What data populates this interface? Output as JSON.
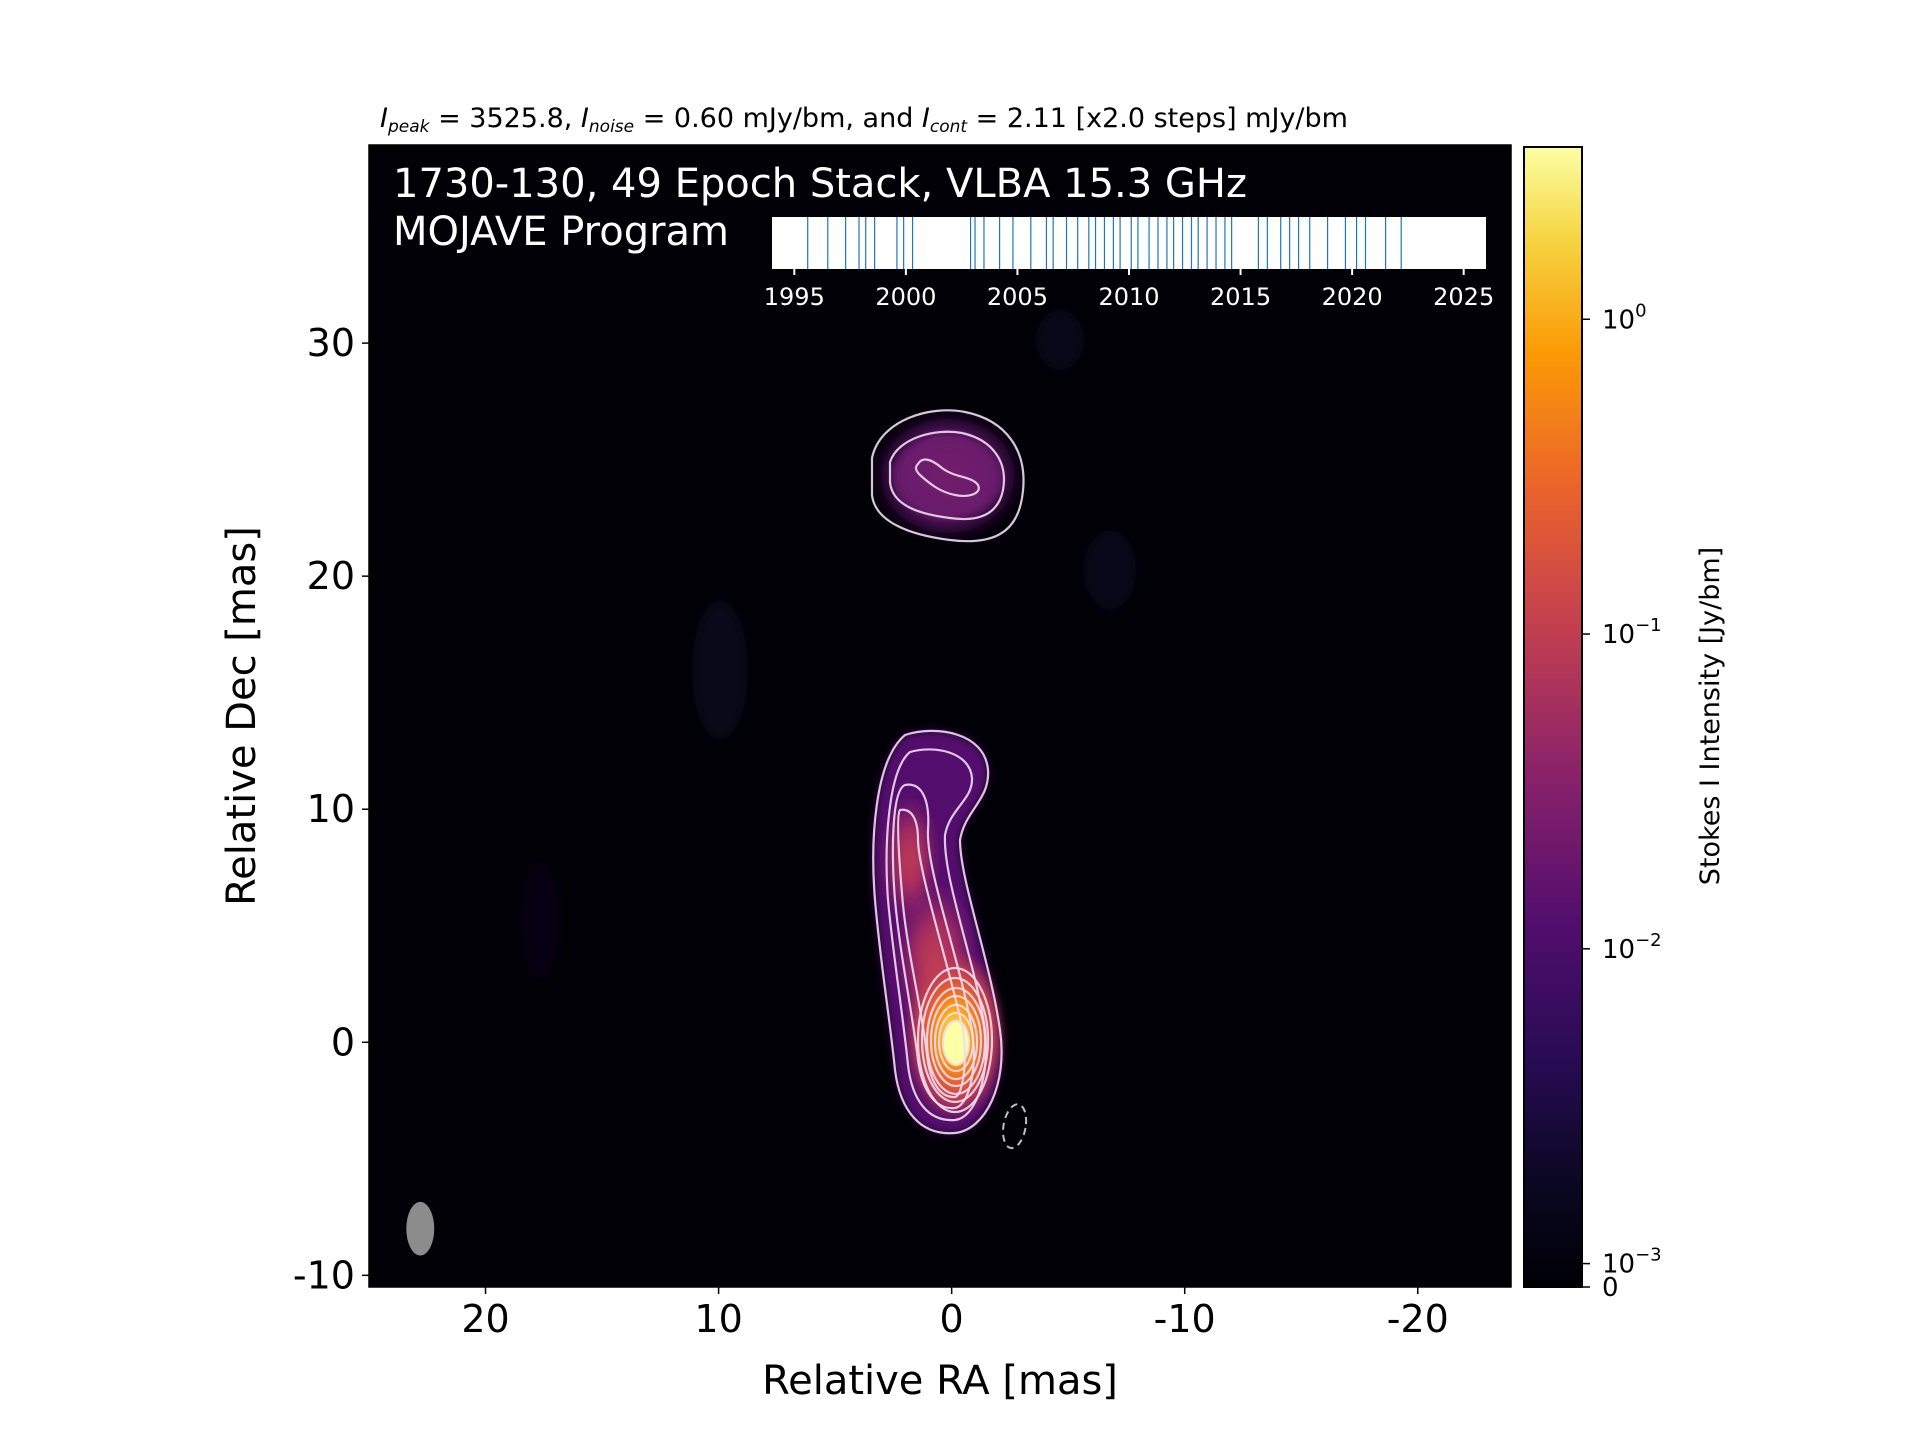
{
  "chart_data": {
    "type": "heatmap",
    "header": {
      "peak_label": "I",
      "peak_sub": "peak",
      "peak_text": " = 3525.8, ",
      "noise_label": "I",
      "noise_sub": "noise",
      "noise_text": " = 0.60 mJy/bm, and ",
      "cont_label": "I",
      "cont_sub": "cont",
      "cont_text": " = 2.11 [x2.0 steps] mJy/bm"
    },
    "title_line1": "1730-130, 49 Epoch Stack, VLBA 15.3 GHz",
    "title_line2": "MOJAVE Program",
    "xlabel": "Relative RA [mas]",
    "ylabel": "Relative Dec [mas]",
    "xlim": [
      25,
      -24
    ],
    "ylim": [
      -10.5,
      38.5
    ],
    "x_ticks": [
      {
        "value": 20,
        "label": "20"
      },
      {
        "value": 10,
        "label": "10"
      },
      {
        "value": 0,
        "label": "0"
      },
      {
        "value": -10,
        "label": "-10"
      },
      {
        "value": -20,
        "label": "-20"
      }
    ],
    "y_ticks": [
      {
        "value": 30,
        "label": "30"
      },
      {
        "value": 20,
        "label": "20"
      },
      {
        "value": 10,
        "label": "10"
      },
      {
        "value": 0,
        "label": "0"
      },
      {
        "value": -10,
        "label": "-10"
      }
    ],
    "colorbar": {
      "label": "Stokes I Intensity [Jy/bm]",
      "scale": "symlog",
      "range": [
        0,
        3.5258
      ],
      "ticks": [
        {
          "value": 1,
          "base": "10",
          "exp": "0"
        },
        {
          "value": 0.1,
          "base": "10",
          "exp": "−1"
        },
        {
          "value": 0.01,
          "base": "10",
          "exp": "−2"
        },
        {
          "value": 0.001,
          "base": "10",
          "exp": "−3"
        },
        {
          "value": 0,
          "base": "0",
          "exp": ""
        }
      ],
      "colormap": "inferno"
    },
    "epochs": {
      "xlim": [
        1994,
        2026
      ],
      "ticks": [
        {
          "value": 1995,
          "label": "1995"
        },
        {
          "value": 2000,
          "label": "2000"
        },
        {
          "value": 2005,
          "label": "2005"
        },
        {
          "value": 2010,
          "label": "2010"
        },
        {
          "value": 2015,
          "label": "2015"
        },
        {
          "value": 2020,
          "label": "2020"
        },
        {
          "value": 2025,
          "label": "2025"
        }
      ],
      "years": [
        1995.6,
        1996.5,
        1997.3,
        1997.9,
        1998.2,
        1998.6,
        1999.6,
        1999.9,
        2000.3,
        2002.9,
        2003.1,
        2003.5,
        2004.2,
        2004.8,
        2005.6,
        2006.3,
        2006.6,
        2007.2,
        2007.7,
        2008.2,
        2008.5,
        2008.9,
        2009.3,
        2009.6,
        2010.1,
        2010.4,
        2010.9,
        2011.3,
        2011.7,
        2012.0,
        2012.4,
        2012.8,
        2013.1,
        2013.5,
        2013.9,
        2014.3,
        2014.6,
        2015.8,
        2016.2,
        2016.8,
        2017.2,
        2017.6,
        2018.1,
        2018.9,
        2019.7,
        2020.2,
        2020.6,
        2021.5,
        2022.2
      ],
      "color": "#1f77b4"
    },
    "components": [
      {
        "x": 0,
        "y": 0,
        "peak": 3.5258,
        "sx": 1.8,
        "sy": 2.6
      },
      {
        "x": 1.0,
        "y": 4.5,
        "peak": 0.045,
        "sx": 2.0,
        "sy": 3.5
      },
      {
        "x": 2.0,
        "y": 8.0,
        "peak": 0.028,
        "sx": 1.7,
        "sy": 2.5
      },
      {
        "x": -0.5,
        "y": 11.0,
        "peak": 0.006,
        "sx": 1.8,
        "sy": 1.5
      },
      {
        "x": -0.3,
        "y": 24.5,
        "peak": 0.0035,
        "sx": 2.4,
        "sy": 1.6
      }
    ],
    "contour_levels_mjy": [
      2.11,
      4.22,
      8.44,
      16.88,
      33.76,
      67.52,
      135.04,
      270.08,
      540.16,
      1080.32,
      2160.64
    ],
    "beam": {
      "x": 22.8,
      "y": -8.0,
      "major": 2.3,
      "minor": 1.2,
      "pa_deg": 0
    },
    "dashed_ellipse": {
      "x": -2.7,
      "y": -3.6,
      "major": 1.9,
      "minor": 0.95,
      "pa_deg": 10
    }
  }
}
